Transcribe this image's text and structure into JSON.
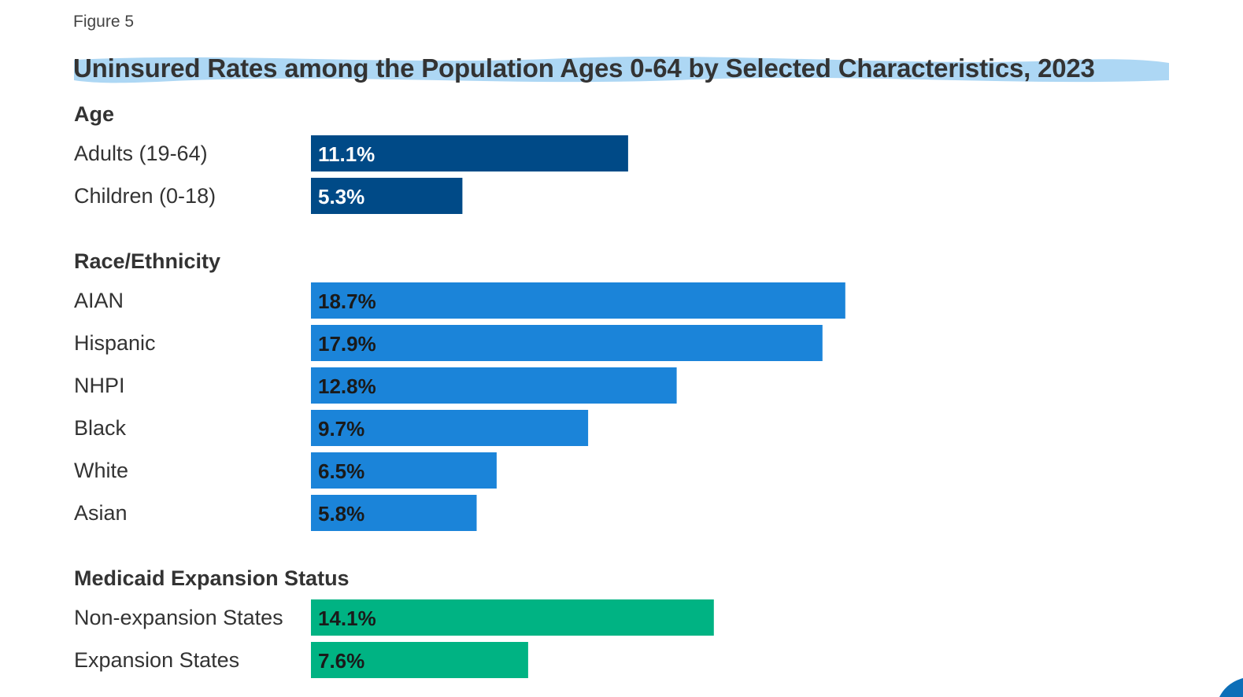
{
  "figure_label": "Figure 5",
  "colors": {
    "age": "#004a87",
    "race": "#1b84d9",
    "medicaid": "#00b383",
    "title_brush": "#9fd0f2",
    "label_text_dark": "#1a1a1a",
    "label_text_light": "#ffffff"
  },
  "chart_data": {
    "type": "bar",
    "orientation": "horizontal",
    "title": "Uninsured Rates among the Population Ages 0-64 by Selected Characteristics, 2023",
    "value_format": "percent",
    "groups": [
      {
        "name": "Age",
        "color_key": "age",
        "label_color": "light",
        "categories": [
          "Adults (19-64)",
          "Children (0-18)"
        ],
        "values": [
          11.1,
          5.3
        ]
      },
      {
        "name": "Race/Ethnicity",
        "color_key": "race",
        "label_color": "dark",
        "categories": [
          "AIAN",
          "Hispanic",
          "NHPI",
          "Black",
          "White",
          "Asian"
        ],
        "values": [
          18.7,
          17.9,
          12.8,
          9.7,
          6.5,
          5.8
        ]
      },
      {
        "name": "Medicaid Expansion Status",
        "color_key": "medicaid",
        "label_color": "dark",
        "categories": [
          "Non-expansion States",
          "Expansion States"
        ],
        "values": [
          14.1,
          7.6
        ]
      }
    ],
    "grid": false,
    "legend": "none"
  }
}
